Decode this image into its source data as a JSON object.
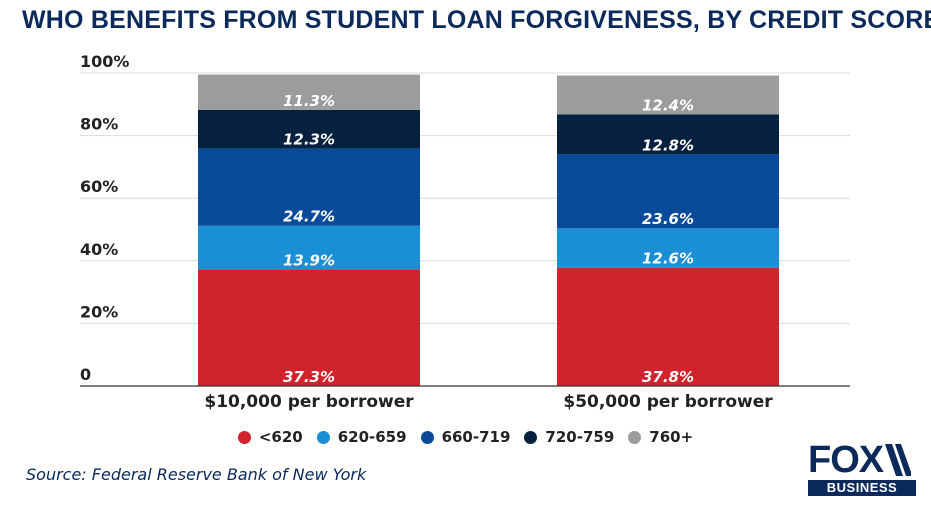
{
  "title": "WHO BENEFITS FROM STUDENT LOAN FORGIVENESS, BY CREDIT SCORE",
  "source": "Source:  Federal Reserve Bank of New York",
  "logo": {
    "top": "FOX",
    "bottom": "BUSINESS"
  },
  "chart_data": {
    "type": "bar",
    "stacked": true,
    "categories": [
      "$10,000 per borrower",
      "$50,000 per borrower"
    ],
    "yticks": [
      "0",
      "20%",
      "40%",
      "60%",
      "80%",
      "100%"
    ],
    "ytick_values": [
      0,
      20,
      40,
      60,
      80,
      100
    ],
    "ylim": [
      0,
      100
    ],
    "grid": true,
    "legend_position": "bottom",
    "series": [
      {
        "name": "<620",
        "color": "#d0232b",
        "values": [
          37.3,
          37.8
        ],
        "labels": [
          "37.3%",
          "37.8%"
        ]
      },
      {
        "name": "620-659",
        "color": "#1a8fd6",
        "values": [
          13.9,
          12.6
        ],
        "labels": [
          "13.9%",
          "12.6%"
        ]
      },
      {
        "name": "660-719",
        "color": "#0a4a9a",
        "values": [
          24.7,
          23.6
        ],
        "labels": [
          "24.7%",
          "23.6%"
        ]
      },
      {
        "name": "720-759",
        "color": "#06213f",
        "values": [
          12.3,
          12.8
        ],
        "labels": [
          "12.3%",
          "12.8%"
        ]
      },
      {
        "name": "760+",
        "color": "#9c9c9c",
        "values": [
          11.3,
          12.4
        ],
        "labels": [
          "11.3%",
          "12.4%"
        ]
      }
    ]
  }
}
